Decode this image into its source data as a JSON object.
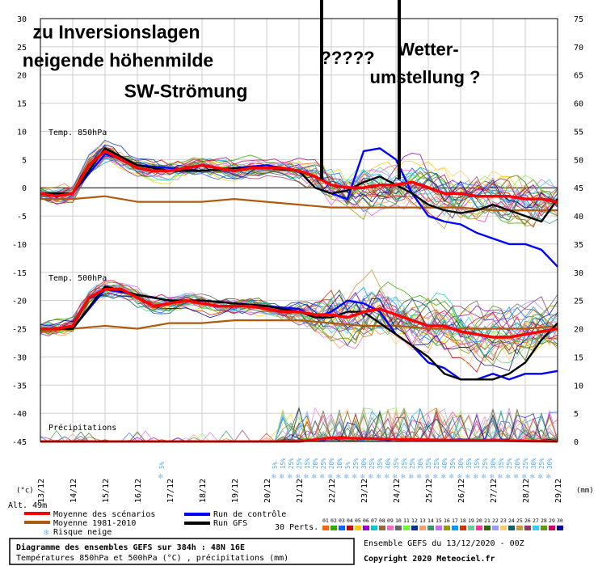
{
  "chart_data": {
    "type": "line",
    "x_dates": [
      "13/12",
      "14/12",
      "15/12",
      "16/12",
      "17/12",
      "18/12",
      "19/12",
      "20/12",
      "21/12",
      "22/12",
      "23/12",
      "24/12",
      "25/12",
      "26/12",
      "27/12",
      "28/12",
      "29/12"
    ],
    "x_range_days": [
      0,
      16
    ],
    "left_axis": {
      "range": [
        -45,
        30
      ],
      "ticks": [
        30,
        25,
        20,
        15,
        10,
        5,
        0,
        -5,
        -10,
        -15,
        -20,
        -25,
        -30,
        -35,
        -40,
        -45
      ],
      "unit": "(°c)"
    },
    "right_axis": {
      "range": [
        0,
        75
      ],
      "ticks": [
        75,
        70,
        65,
        60,
        55,
        50,
        45,
        40,
        35,
        30,
        25,
        20,
        15,
        10,
        5,
        0
      ],
      "unit": "(mm)"
    },
    "altitude": "Alt. 49m",
    "panels": [
      {
        "label": "Temp. 850hPa"
      },
      {
        "label": "Temp. 500hPa"
      },
      {
        "label": "Précipitations"
      }
    ],
    "series": [
      {
        "name": "Moyenne des scénarios",
        "color": "#ff0000",
        "panel": "850",
        "x": [
          0,
          0.5,
          1,
          1.5,
          2,
          2.5,
          3,
          3.5,
          4,
          4.5,
          5,
          5.5,
          6,
          6.5,
          7,
          7.5,
          8,
          8.5,
          9,
          9.5,
          10,
          10.5,
          11,
          11.5,
          12,
          12.5,
          13,
          13.5,
          14,
          14.5,
          15,
          15.5,
          16
        ],
        "y": [
          -1,
          -1.5,
          -1,
          4,
          6.5,
          5,
          3.5,
          3,
          3,
          3.5,
          4,
          3.5,
          3,
          3.5,
          3.5,
          3.5,
          3,
          2,
          0.5,
          0,
          0,
          0.5,
          0.5,
          1,
          0,
          -1,
          -1,
          -1.5,
          -1.5,
          -1.5,
          -2,
          -2,
          -2.5
        ]
      },
      {
        "name": "Moyenne des scénarios",
        "color": "#ff0000",
        "panel": "500",
        "x": [
          0,
          0.5,
          1,
          1.5,
          2,
          2.5,
          3,
          3.5,
          4,
          4.5,
          5,
          5.5,
          6,
          6.5,
          7,
          7.5,
          8,
          8.5,
          9,
          9.5,
          10,
          10.5,
          11,
          11.5,
          12,
          12.5,
          13,
          13.5,
          14,
          14.5,
          15,
          15.5,
          16
        ],
        "y": [
          -25,
          -25,
          -24.5,
          -19.5,
          -18,
          -18,
          -19.5,
          -21,
          -20.5,
          -20,
          -20.5,
          -21,
          -21,
          -21,
          -21.5,
          -22,
          -22,
          -22.5,
          -22.5,
          -23,
          -22,
          -21.5,
          -22.5,
          -23.5,
          -24.5,
          -24.5,
          -25.5,
          -26,
          -26.5,
          -26.5,
          -26,
          -25.5,
          -25
        ]
      },
      {
        "name": "Moyenne 1981-2010",
        "color": "#b05a10",
        "panel": "850",
        "x": [
          0,
          1,
          2,
          3,
          4,
          5,
          6,
          7,
          8,
          9,
          10,
          11,
          12,
          13,
          14,
          15,
          16
        ],
        "y": [
          -2,
          -2,
          -1.5,
          -2.5,
          -2.5,
          -2.5,
          -2,
          -2.5,
          -3,
          -3.5,
          -3.5,
          -3.5,
          -3.5,
          -3.5,
          -4,
          -4,
          -4
        ]
      },
      {
        "name": "Moyenne 1981-2010",
        "color": "#b05a10",
        "panel": "500",
        "x": [
          0,
          1,
          2,
          3,
          4,
          5,
          6,
          7,
          8,
          9,
          10,
          11,
          12,
          13,
          14,
          15,
          16
        ],
        "y": [
          -25.5,
          -25,
          -24.5,
          -25,
          -24,
          -24,
          -23.5,
          -23.5,
          -23.5,
          -24,
          -24.5,
          -24.5,
          -25,
          -25,
          -25,
          -25,
          -24.5
        ]
      },
      {
        "name": "Run de contrôle",
        "color": "#0000ff",
        "panel": "850",
        "x": [
          0,
          1,
          2,
          3,
          4,
          5,
          6,
          7,
          8,
          8.5,
          9,
          9.5,
          10,
          10.5,
          11,
          11.5,
          12,
          12.5,
          13,
          13.5,
          14,
          14.5,
          15,
          15.5,
          16
        ],
        "y": [
          -1,
          -1,
          6,
          4,
          3.5,
          3,
          3.5,
          4,
          3,
          0,
          -1,
          -2,
          6.5,
          7,
          5,
          -1,
          -5,
          -6,
          -6.5,
          -8,
          -9,
          -10,
          -10,
          -11,
          -14
        ]
      },
      {
        "name": "Run de contrôle",
        "color": "#0000ff",
        "panel": "500",
        "x": [
          0,
          1,
          2,
          3,
          4,
          5,
          6,
          7,
          8,
          8.5,
          9,
          9.5,
          10,
          10.5,
          11,
          11.5,
          12,
          12.5,
          13,
          13.5,
          14,
          14.5,
          15,
          15.5,
          16
        ],
        "y": [
          -25,
          -25,
          -18,
          -19,
          -20,
          -20,
          -20.5,
          -21,
          -21.5,
          -23,
          -22,
          -20,
          -20.5,
          -22,
          -26,
          -28,
          -31,
          -32,
          -34,
          -34,
          -33,
          -34,
          -33,
          -33,
          -32.5
        ]
      },
      {
        "name": "Run GFS",
        "color": "#000000",
        "panel": "850",
        "x": [
          0,
          1,
          2,
          3,
          4,
          5,
          6,
          7,
          8,
          8.5,
          9,
          9.5,
          10,
          10.5,
          11,
          11.5,
          12,
          12.5,
          13,
          13.5,
          14,
          14.5,
          15,
          15.5,
          16
        ],
        "y": [
          -1,
          -1,
          7,
          4,
          3,
          3,
          3.5,
          3.5,
          3,
          0,
          -1,
          -0.5,
          1,
          2,
          0.5,
          -1,
          -3,
          -4,
          -4.5,
          -4,
          -3,
          -4,
          -5,
          -6,
          -2
        ]
      },
      {
        "name": "Run GFS",
        "color": "#000000",
        "panel": "500",
        "x": [
          0,
          1,
          2,
          3,
          4,
          5,
          6,
          7,
          8,
          8.5,
          9,
          9.5,
          10,
          10.5,
          11,
          11.5,
          12,
          12.5,
          13,
          13.5,
          14,
          14.5,
          15,
          15.5,
          16
        ],
        "y": [
          -25,
          -25,
          -17.5,
          -19,
          -20,
          -20,
          -20.5,
          -21,
          -22,
          -23,
          -23,
          -22,
          -22,
          -24,
          -26,
          -28,
          -30,
          -33,
          -34,
          -34,
          -34,
          -33,
          -31,
          -27,
          -24
        ]
      }
    ],
    "snow_risk_pct": [
      {
        "day": 3.75,
        "pct": "5%"
      },
      {
        "day": 7.25,
        "pct": "5%"
      },
      {
        "day": 7.5,
        "pct": "15%"
      },
      {
        "day": 7.75,
        "pct": "25%"
      },
      {
        "day": 8.0,
        "pct": "25%"
      },
      {
        "day": 8.25,
        "pct": "15%"
      },
      {
        "day": 8.5,
        "pct": "20%"
      },
      {
        "day": 8.75,
        "pct": "25%"
      },
      {
        "day": 9.0,
        "pct": "20%"
      },
      {
        "day": 9.25,
        "pct": "10%"
      },
      {
        "day": 9.5,
        "pct": "5%"
      },
      {
        "day": 9.75,
        "pct": "25%"
      },
      {
        "day": 10.0,
        "pct": "30%"
      },
      {
        "day": 10.25,
        "pct": "25%"
      },
      {
        "day": 10.5,
        "pct": "35%"
      },
      {
        "day": 10.75,
        "pct": "40%"
      },
      {
        "day": 11.0,
        "pct": "35%"
      },
      {
        "day": 11.25,
        "pct": "25%"
      },
      {
        "day": 11.5,
        "pct": "25%"
      },
      {
        "day": 11.75,
        "pct": "30%"
      },
      {
        "day": 12.0,
        "pct": "35%"
      },
      {
        "day": 12.25,
        "pct": "25%"
      },
      {
        "day": 12.5,
        "pct": "40%"
      },
      {
        "day": 12.75,
        "pct": "35%"
      },
      {
        "day": 13.0,
        "pct": "30%"
      },
      {
        "day": 13.25,
        "pct": "35%"
      },
      {
        "day": 13.5,
        "pct": "15%"
      },
      {
        "day": 13.75,
        "pct": "25%"
      },
      {
        "day": 14.0,
        "pct": "30%"
      },
      {
        "day": 14.25,
        "pct": "35%"
      },
      {
        "day": 14.5,
        "pct": "25%"
      },
      {
        "day": 14.75,
        "pct": "20%"
      },
      {
        "day": 15.0,
        "pct": "25%"
      },
      {
        "day": 15.25,
        "pct": "30%"
      },
      {
        "day": 15.5,
        "pct": "25%"
      },
      {
        "day": 15.75,
        "pct": "30%"
      }
    ],
    "annotations": [
      {
        "text": "zu    Inversionslagen",
        "day": 2.35,
        "temp": 26.5,
        "size": 23
      },
      {
        "text": "neigende höhenmilde",
        "day": 2.4,
        "temp": 21.5,
        "size": 23
      },
      {
        "text": "SW-Strömung",
        "day": 4.5,
        "temp": 16,
        "size": 23
      },
      {
        "text": "?????",
        "day": 9.5,
        "temp": 22,
        "size": 22
      },
      {
        "text": "Wetter-",
        "day": 12.0,
        "temp": 23.5,
        "size": 22
      },
      {
        "text": "umstellung ?",
        "day": 11.9,
        "temp": 18.5,
        "size": 22
      }
    ],
    "vertical_markers_day": [
      8.7,
      11.1
    ]
  },
  "legend": {
    "mean": "Moyenne des scénarios",
    "climate": "Moyenne 1981-2010",
    "snow": "Risque neige",
    "control": "Run de contrôle",
    "gfs": "Run GFS",
    "perts_label": "30 Perts.",
    "pert_numbers": [
      "01",
      "02",
      "03",
      "04",
      "05",
      "06",
      "07",
      "08",
      "09",
      "10",
      "11",
      "12",
      "13",
      "14",
      "15",
      "16",
      "17",
      "18",
      "19",
      "20",
      "21",
      "22",
      "23",
      "24",
      "25",
      "26",
      "27",
      "28",
      "29",
      "30"
    ],
    "pert_colors": [
      "#ff6600",
      "#33aa00",
      "#0066ff",
      "#cc0000",
      "#ffcc00",
      "#9900cc",
      "#00cccc",
      "#996633",
      "#ff66cc",
      "#666666",
      "#66ff33",
      "#003399",
      "#ff9966",
      "#339966",
      "#cc66ff",
      "#999900",
      "#0099ff",
      "#cc3300",
      "#66cc99",
      "#ff3399",
      "#336600",
      "#9999ff",
      "#ffcc66",
      "#006666",
      "#cc9933",
      "#993366",
      "#33ccff",
      "#669900",
      "#cc0066",
      "#000099"
    ]
  },
  "footer": {
    "title": "Diagramme des ensembles GEFS sur 384h : 48N 16E",
    "subtitle": "Températures 850hPa et 500hPa (°C) , précipitations (mm)",
    "run": "Ensemble GEFS du 13/12/2020 - 00Z",
    "copyright": "Copyright 2020 Meteociel.fr"
  }
}
